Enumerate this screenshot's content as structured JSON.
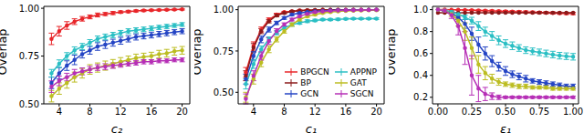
{
  "chart_data": [
    {
      "type": "line",
      "x_label": "c₂",
      "y_label": "Overlap",
      "grid": false,
      "marker": "circle",
      "x": [
        3,
        4,
        5,
        6,
        7,
        8,
        9,
        10,
        11,
        12,
        13,
        14,
        15,
        16,
        17,
        18,
        19,
        20
      ],
      "xlim": [
        2,
        21
      ],
      "xticks": [
        4,
        8,
        12,
        16,
        20
      ],
      "ylim": [
        0.5,
        1.01
      ],
      "yticks": [
        {
          "value": 0.5,
          "label": "0.50"
        },
        0.75,
        {
          "value": 1,
          "label": "1.00"
        }
      ],
      "series": [
        {
          "name": "BPGCN",
          "color": "#e8262a",
          "values": [
            0.84,
            0.88,
            0.91,
            0.93,
            0.945,
            0.955,
            0.965,
            0.97,
            0.975,
            0.98,
            0.983,
            0.986,
            0.988,
            0.99,
            0.991,
            0.992,
            0.993,
            0.994
          ],
          "errors": [
            0.03,
            0.025,
            0.02,
            0.015,
            0.012,
            0.01,
            0.01,
            0.008,
            0.008,
            0.006,
            0.006,
            0.005,
            0.005,
            0.004,
            0.004,
            0.004,
            0.003,
            0.003
          ]
        },
        {
          "name": "GCN",
          "color": "#2545c4",
          "values": [
            0.61,
            0.66,
            0.7,
            0.73,
            0.76,
            0.78,
            0.8,
            0.81,
            0.82,
            0.83,
            0.84,
            0.85,
            0.855,
            0.86,
            0.865,
            0.87,
            0.875,
            0.88
          ],
          "errors": [
            0.03,
            0.03,
            0.025,
            0.025,
            0.02,
            0.02,
            0.02,
            0.02,
            0.018,
            0.018,
            0.016,
            0.016,
            0.015,
            0.015,
            0.014,
            0.014,
            0.013,
            0.013
          ]
        },
        {
          "name": "APPNP",
          "color": "#2bbfc4",
          "values": [
            0.66,
            0.71,
            0.75,
            0.78,
            0.8,
            0.82,
            0.84,
            0.85,
            0.86,
            0.87,
            0.88,
            0.885,
            0.89,
            0.895,
            0.9,
            0.905,
            0.91,
            0.915
          ],
          "errors": [
            0.02,
            0.02,
            0.018,
            0.018,
            0.016,
            0.016,
            0.015,
            0.015,
            0.014,
            0.014,
            0.013,
            0.013,
            0.012,
            0.012,
            0.011,
            0.011,
            0.01,
            0.01
          ]
        },
        {
          "name": "GAT",
          "color": "#bcbd22",
          "values": [
            0.54,
            0.58,
            0.61,
            0.64,
            0.66,
            0.68,
            0.69,
            0.7,
            0.71,
            0.72,
            0.73,
            0.74,
            0.745,
            0.75,
            0.76,
            0.765,
            0.775,
            0.78
          ],
          "errors": [
            0.03,
            0.03,
            0.028,
            0.026,
            0.025,
            0.025,
            0.024,
            0.024,
            0.022,
            0.022,
            0.02,
            0.02,
            0.02,
            0.02,
            0.02,
            0.02,
            0.02,
            0.02
          ]
        },
        {
          "name": "SGCN",
          "color": "#b62fb6",
          "values": [
            0.59,
            0.62,
            0.64,
            0.66,
            0.67,
            0.68,
            0.69,
            0.695,
            0.7,
            0.705,
            0.71,
            0.715,
            0.72,
            0.72,
            0.725,
            0.725,
            0.73,
            0.73
          ],
          "errors": [
            0.03,
            0.025,
            0.02,
            0.02,
            0.018,
            0.016,
            0.015,
            0.015,
            0.014,
            0.013,
            0.012,
            0.012,
            0.011,
            0.011,
            0.01,
            0.01,
            0.01,
            0.01
          ]
        }
      ]
    },
    {
      "type": "line",
      "x_label": "c₁",
      "y_label": "Overlap",
      "grid": false,
      "marker": "circle",
      "legend": "lower right",
      "x": [
        3,
        4,
        5,
        6,
        7,
        8,
        9,
        10,
        11,
        12,
        13,
        14,
        15,
        16,
        17,
        18,
        19,
        20
      ],
      "xlim": [
        2,
        21
      ],
      "xticks": [
        4,
        8,
        12,
        16,
        20
      ],
      "ylim": [
        0.43,
        1.02
      ],
      "yticks": [
        {
          "value": 0.5,
          "label": "0.50"
        },
        0.75,
        {
          "value": 1,
          "label": "1.00"
        }
      ],
      "series": [
        {
          "name": "BPGCN",
          "color": "#e8262a",
          "values": [
            0.62,
            0.78,
            0.88,
            0.94,
            0.97,
            0.985,
            0.99,
            0.995,
            0.997,
            0.998,
            0.999,
            0.999,
            1,
            1,
            1,
            1,
            1,
            1
          ],
          "errors": [
            0.03,
            0.025,
            0.015,
            0.01,
            0.008,
            0.005,
            0.004,
            0.003,
            0.002,
            0.002,
            0.001,
            0.001,
            0,
            0,
            0,
            0,
            0,
            0
          ]
        },
        {
          "name": "BP",
          "color": "#8b1a1a",
          "values": [
            0.6,
            0.77,
            0.87,
            0.93,
            0.965,
            0.98,
            0.99,
            0.994,
            0.996,
            0.998,
            0.999,
            0.999,
            1,
            1,
            1,
            1,
            1,
            1
          ],
          "errors": [
            0.03,
            0.025,
            0.015,
            0.01,
            0.008,
            0.005,
            0.004,
            0.003,
            0.002,
            0.002,
            0.001,
            0.001,
            0,
            0,
            0,
            0,
            0,
            0
          ]
        },
        {
          "name": "GCN",
          "color": "#2545c4",
          "values": [
            0.58,
            0.72,
            0.82,
            0.88,
            0.92,
            0.95,
            0.97,
            0.98,
            0.985,
            0.99,
            0.992,
            0.995,
            0.996,
            0.997,
            0.998,
            0.998,
            0.999,
            0.999
          ],
          "errors": [
            0.03,
            0.025,
            0.02,
            0.015,
            0.01,
            0.008,
            0.006,
            0.005,
            0.004,
            0.003,
            0.003,
            0.002,
            0.002,
            0.002,
            0.001,
            0.001,
            0.001,
            0.001
          ]
        },
        {
          "name": "APPNP",
          "color": "#2bbfc4",
          "values": [
            0.55,
            0.67,
            0.76,
            0.82,
            0.86,
            0.89,
            0.91,
            0.92,
            0.93,
            0.935,
            0.94,
            0.94,
            0.942,
            0.944,
            0.945,
            0.945,
            0.946,
            0.946
          ],
          "errors": [
            0.03,
            0.025,
            0.02,
            0.015,
            0.012,
            0.01,
            0.01,
            0.008,
            0.008,
            0.007,
            0.006,
            0.006,
            0.006,
            0.005,
            0.005,
            0.005,
            0.005,
            0.005
          ]
        },
        {
          "name": "GAT",
          "color": "#bcbd22",
          "values": [
            0.47,
            0.58,
            0.68,
            0.76,
            0.82,
            0.87,
            0.91,
            0.94,
            0.96,
            0.97,
            0.98,
            0.985,
            0.99,
            0.992,
            0.994,
            0.995,
            0.996,
            0.997
          ],
          "errors": [
            0.03,
            0.03,
            0.025,
            0.02,
            0.015,
            0.012,
            0.01,
            0.008,
            0.006,
            0.005,
            0.004,
            0.003,
            0.003,
            0.002,
            0.002,
            0.002,
            0.002,
            0.002
          ]
        },
        {
          "name": "SGCN",
          "color": "#b62fb6",
          "values": [
            0.46,
            0.6,
            0.72,
            0.81,
            0.87,
            0.91,
            0.94,
            0.96,
            0.975,
            0.985,
            0.99,
            0.993,
            0.995,
            0.996,
            0.997,
            0.998,
            0.998,
            0.999
          ],
          "errors": [
            0.03,
            0.03,
            0.025,
            0.02,
            0.015,
            0.01,
            0.008,
            0.006,
            0.005,
            0.004,
            0.003,
            0.003,
            0.002,
            0.002,
            0.002,
            0.001,
            0.001,
            0.001
          ]
        }
      ]
    },
    {
      "type": "line",
      "x_label": "ε₁",
      "y_label": "Overlap",
      "grid": false,
      "marker": "circle",
      "x": [
        0,
        0.05,
        0.1,
        0.15,
        0.2,
        0.25,
        0.3,
        0.35,
        0.4,
        0.45,
        0.5,
        0.55,
        0.6,
        0.65,
        0.7,
        0.75,
        0.8,
        0.85,
        0.9,
        0.95,
        1
      ],
      "xlim": [
        -0.04,
        1.04
      ],
      "xticks": [
        {
          "value": 0,
          "label": "0.00"
        },
        0.25,
        {
          "value": 0.5,
          "label": "0.50"
        },
        0.75,
        {
          "value": 1,
          "label": "1.00"
        }
      ],
      "ylim": [
        0.14,
        1.03
      ],
      "yticks": [
        0.2,
        0.4,
        0.6,
        0.8,
        {
          "value": 1,
          "label": "1.0"
        }
      ],
      "series": [
        {
          "name": "BPGCN",
          "color": "#e8262a",
          "values": [
            1,
            1,
            0.999,
            0.998,
            0.997,
            0.995,
            0.993,
            0.99,
            0.988,
            0.986,
            0.984,
            0.982,
            0.98,
            0.978,
            0.976,
            0.974,
            0.972,
            0.97,
            0.968,
            0.966,
            0.965
          ],
          "errors": [
            0,
            0,
            0.002,
            0.003,
            0.004,
            0.005,
            0.006,
            0.007,
            0.008,
            0.008,
            0.009,
            0.009,
            0.01,
            0.01,
            0.01,
            0.01,
            0.01,
            0.01,
            0.01,
            0.01,
            0.01
          ]
        },
        {
          "name": "BP",
          "color": "#8b1a1a",
          "values": [
            0.972,
            0.972,
            0.972,
            0.972,
            0.972,
            0.972,
            0.972,
            0.972,
            0.972,
            0.972,
            0.972,
            0.972,
            0.972,
            0.972,
            0.972,
            0.972,
            0.972,
            0.972,
            0.972,
            0.972,
            0.972
          ],
          "errors": [
            0,
            0,
            0,
            0,
            0,
            0,
            0,
            0,
            0,
            0,
            0,
            0,
            0,
            0,
            0,
            0,
            0,
            0,
            0,
            0,
            0
          ]
        },
        {
          "name": "GCN",
          "color": "#2545c4",
          "values": [
            1,
            0.99,
            0.97,
            0.93,
            0.87,
            0.78,
            0.68,
            0.6,
            0.53,
            0.48,
            0.44,
            0.41,
            0.39,
            0.37,
            0.35,
            0.34,
            0.33,
            0.32,
            0.31,
            0.3,
            0.3
          ],
          "errors": [
            0,
            0.005,
            0.01,
            0.02,
            0.04,
            0.06,
            0.07,
            0.06,
            0.05,
            0.04,
            0.04,
            0.03,
            0.03,
            0.03,
            0.02,
            0.02,
            0.02,
            0.02,
            0.02,
            0.02,
            0.02
          ]
        },
        {
          "name": "APPNP",
          "color": "#2bbfc4",
          "values": [
            1,
            0.99,
            0.98,
            0.96,
            0.93,
            0.9,
            0.85,
            0.8,
            0.76,
            0.72,
            0.69,
            0.67,
            0.65,
            0.63,
            0.62,
            0.61,
            0.6,
            0.59,
            0.58,
            0.575,
            0.57
          ],
          "errors": [
            0,
            0.005,
            0.01,
            0.015,
            0.02,
            0.03,
            0.04,
            0.04,
            0.04,
            0.04,
            0.035,
            0.035,
            0.03,
            0.03,
            0.03,
            0.03,
            0.03,
            0.03,
            0.03,
            0.03,
            0.03
          ]
        },
        {
          "name": "GAT",
          "color": "#bcbd22",
          "values": [
            1,
            0.99,
            0.96,
            0.9,
            0.8,
            0.65,
            0.5,
            0.42,
            0.37,
            0.34,
            0.32,
            0.31,
            0.3,
            0.3,
            0.29,
            0.29,
            0.29,
            0.28,
            0.28,
            0.28,
            0.28
          ],
          "errors": [
            0,
            0.01,
            0.02,
            0.05,
            0.08,
            0.1,
            0.08,
            0.06,
            0.04,
            0.03,
            0.02,
            0.02,
            0.02,
            0.02,
            0.015,
            0.015,
            0.015,
            0.015,
            0.015,
            0.015,
            0.015
          ]
        },
        {
          "name": "SGCN",
          "color": "#b62fb6",
          "values": [
            1,
            0.99,
            0.95,
            0.85,
            0.65,
            0.4,
            0.28,
            0.23,
            0.21,
            0.2,
            0.2,
            0.2,
            0.2,
            0.2,
            0.2,
            0.2,
            0.2,
            0.2,
            0.2,
            0.2,
            0.2
          ],
          "errors": [
            0,
            0.01,
            0.03,
            0.08,
            0.15,
            0.18,
            0.12,
            0.06,
            0.03,
            0.02,
            0.01,
            0.01,
            0.01,
            0.01,
            0.01,
            0.01,
            0.01,
            0.01,
            0.01,
            0.01,
            0.01
          ]
        }
      ]
    }
  ]
}
